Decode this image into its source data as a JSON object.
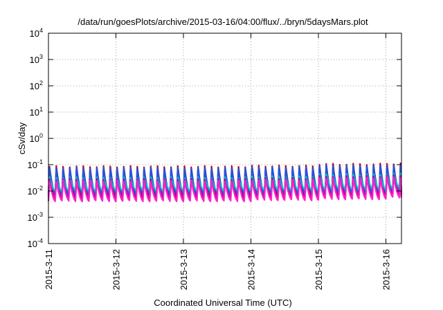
{
  "chart_data": {
    "type": "line",
    "title": "/data/run/goesPlots/archive/2015-03-16/04:00/flux/../bryn/5daysMars.plot",
    "xlabel": "Coordinated Universal Time (UTC)",
    "ylabel": "cSv/day",
    "yscale": "log",
    "ylim": [
      0.0001,
      10000
    ],
    "xlim": [
      "2015-03-11",
      "2015-03-16 04:00"
    ],
    "grid": true,
    "legend": "none",
    "x_ticks": [
      "2015-3-11",
      "2015-3-12",
      "2015-3-13",
      "2015-3-14",
      "2015-3-15",
      "2015-3-16"
    ],
    "y_ticks": [
      {
        "base": "10",
        "exp": "-4"
      },
      {
        "base": "10",
        "exp": "-3"
      },
      {
        "base": "10",
        "exp": "-2"
      },
      {
        "base": "10",
        "exp": "-1"
      },
      {
        "base": "10",
        "exp": "0"
      },
      {
        "base": "10",
        "exp": "1"
      },
      {
        "base": "10",
        "exp": "2"
      },
      {
        "base": "10",
        "exp": "3"
      },
      {
        "base": "10",
        "exp": "4"
      }
    ],
    "cycles_per_day": 10,
    "series": [
      {
        "color": "#cc0000",
        "peak": [
          0.085,
          0.085,
          0.085,
          0.09,
          0.105,
          0.11
        ],
        "trough": [
          0.0063,
          0.0063,
          0.0063,
          0.0068,
          0.0072,
          0.0082
        ]
      },
      {
        "color": "#2255dd",
        "peak": [
          0.075,
          0.075,
          0.075,
          0.08,
          0.092,
          0.095
        ],
        "trough": [
          0.0075,
          0.0075,
          0.0075,
          0.008,
          0.0085,
          0.0095
        ]
      },
      {
        "color": "#00c8c8",
        "peak": [
          0.032,
          0.032,
          0.032,
          0.035,
          0.042,
          0.045
        ],
        "trough": [
          0.0105,
          0.0105,
          0.0105,
          0.011,
          0.012,
          0.013
        ]
      },
      {
        "color": "#aa00aa",
        "peak": [
          0.028,
          0.028,
          0.028,
          0.03,
          0.036,
          0.038
        ],
        "trough": [
          0.0052,
          0.0052,
          0.0052,
          0.0056,
          0.006,
          0.0068
        ]
      },
      {
        "color": "#ff22cc",
        "peak": [
          0.024,
          0.024,
          0.024,
          0.026,
          0.031,
          0.033
        ],
        "trough": [
          0.0042,
          0.0042,
          0.0042,
          0.0046,
          0.005,
          0.0058
        ]
      }
    ]
  }
}
